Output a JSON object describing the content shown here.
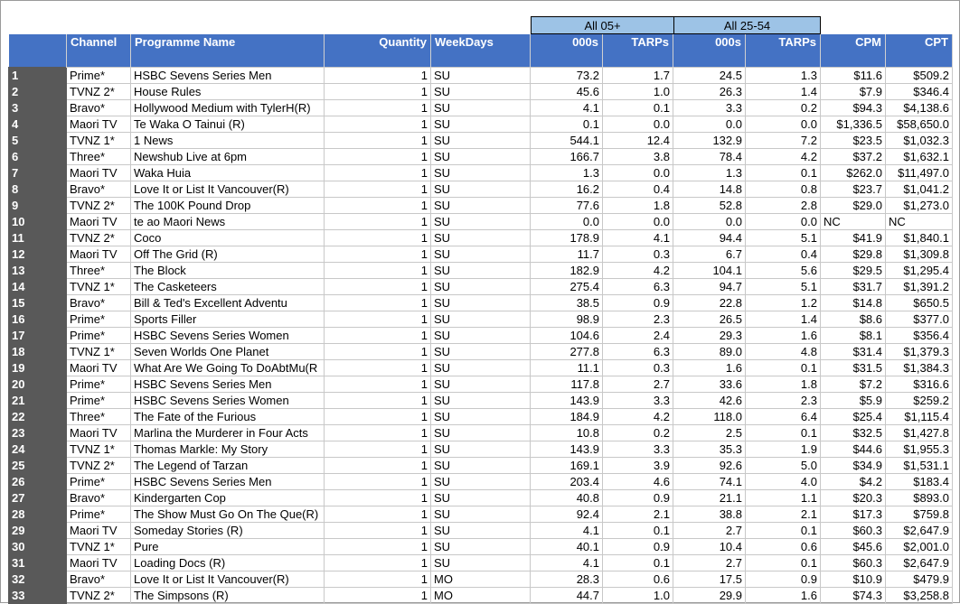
{
  "group_headers": [
    "All 05+",
    "All 25-54"
  ],
  "columns": [
    "",
    "Channel",
    "Programme Name",
    "Quantity",
    "WeekDays",
    "000s",
    "TARPs",
    "000s",
    "TARPs",
    "CPM",
    "CPT"
  ],
  "rows": [
    [
      "1",
      "Prime*",
      "HSBC Sevens Series Men",
      "1",
      "SU",
      "73.2",
      "1.7",
      "24.5",
      "1.3",
      "$11.6",
      "$509.2"
    ],
    [
      "2",
      "TVNZ 2*",
      "House Rules",
      "1",
      "SU",
      "45.6",
      "1.0",
      "26.3",
      "1.4",
      "$7.9",
      "$346.4"
    ],
    [
      "3",
      "Bravo*",
      "Hollywood Medium with TylerH(R)",
      "1",
      "SU",
      "4.1",
      "0.1",
      "3.3",
      "0.2",
      "$94.3",
      "$4,138.6"
    ],
    [
      "4",
      "Maori TV",
      "Te Waka O Tainui (R)",
      "1",
      "SU",
      "0.1",
      "0.0",
      "0.0",
      "0.0",
      "$1,336.5",
      "$58,650.0"
    ],
    [
      "5",
      "TVNZ 1*",
      "1 News",
      "1",
      "SU",
      "544.1",
      "12.4",
      "132.9",
      "7.2",
      "$23.5",
      "$1,032.3"
    ],
    [
      "6",
      "Three*",
      "Newshub Live at 6pm",
      "1",
      "SU",
      "166.7",
      "3.8",
      "78.4",
      "4.2",
      "$37.2",
      "$1,632.1"
    ],
    [
      "7",
      "Maori TV",
      "Waka Huia",
      "1",
      "SU",
      "1.3",
      "0.0",
      "1.3",
      "0.1",
      "$262.0",
      "$11,497.0"
    ],
    [
      "8",
      "Bravo*",
      "Love It or List It Vancouver(R)",
      "1",
      "SU",
      "16.2",
      "0.4",
      "14.8",
      "0.8",
      "$23.7",
      "$1,041.2"
    ],
    [
      "9",
      "TVNZ 2*",
      "The 100K Pound Drop",
      "1",
      "SU",
      "77.6",
      "1.8",
      "52.8",
      "2.8",
      "$29.0",
      "$1,273.0"
    ],
    [
      "10",
      "Maori TV",
      "te ao Maori News",
      "1",
      "SU",
      "0.0",
      "0.0",
      "0.0",
      "0.0",
      "NC",
      "NC"
    ],
    [
      "11",
      "TVNZ 2*",
      "Coco",
      "1",
      "SU",
      "178.9",
      "4.1",
      "94.4",
      "5.1",
      "$41.9",
      "$1,840.1"
    ],
    [
      "12",
      "Maori TV",
      "Off The Grid (R)",
      "1",
      "SU",
      "11.7",
      "0.3",
      "6.7",
      "0.4",
      "$29.8",
      "$1,309.8"
    ],
    [
      "13",
      "Three*",
      "The Block",
      "1",
      "SU",
      "182.9",
      "4.2",
      "104.1",
      "5.6",
      "$29.5",
      "$1,295.4"
    ],
    [
      "14",
      "TVNZ 1*",
      "The Casketeers",
      "1",
      "SU",
      "275.4",
      "6.3",
      "94.7",
      "5.1",
      "$31.7",
      "$1,391.2"
    ],
    [
      "15",
      "Bravo*",
      "Bill & Ted's Excellent Adventu",
      "1",
      "SU",
      "38.5",
      "0.9",
      "22.8",
      "1.2",
      "$14.8",
      "$650.5"
    ],
    [
      "16",
      "Prime*",
      "Sports Filler",
      "1",
      "SU",
      "98.9",
      "2.3",
      "26.5",
      "1.4",
      "$8.6",
      "$377.0"
    ],
    [
      "17",
      "Prime*",
      "HSBC Sevens Series Women",
      "1",
      "SU",
      "104.6",
      "2.4",
      "29.3",
      "1.6",
      "$8.1",
      "$356.4"
    ],
    [
      "18",
      "TVNZ 1*",
      "Seven Worlds One Planet",
      "1",
      "SU",
      "277.8",
      "6.3",
      "89.0",
      "4.8",
      "$31.4",
      "$1,379.3"
    ],
    [
      "19",
      "Maori TV",
      "What Are We Going To DoAbtMu(R",
      "1",
      "SU",
      "11.1",
      "0.3",
      "1.6",
      "0.1",
      "$31.5",
      "$1,384.3"
    ],
    [
      "20",
      "Prime*",
      "HSBC Sevens Series Men",
      "1",
      "SU",
      "117.8",
      "2.7",
      "33.6",
      "1.8",
      "$7.2",
      "$316.6"
    ],
    [
      "21",
      "Prime*",
      "HSBC Sevens Series Women",
      "1",
      "SU",
      "143.9",
      "3.3",
      "42.6",
      "2.3",
      "$5.9",
      "$259.2"
    ],
    [
      "22",
      "Three*",
      "The Fate of the Furious",
      "1",
      "SU",
      "184.9",
      "4.2",
      "118.0",
      "6.4",
      "$25.4",
      "$1,115.4"
    ],
    [
      "23",
      "Maori TV",
      "Marlina the Murderer in Four Acts",
      "1",
      "SU",
      "10.8",
      "0.2",
      "2.5",
      "0.1",
      "$32.5",
      "$1,427.8"
    ],
    [
      "24",
      "TVNZ 1*",
      "Thomas Markle: My Story",
      "1",
      "SU",
      "143.9",
      "3.3",
      "35.3",
      "1.9",
      "$44.6",
      "$1,955.3"
    ],
    [
      "25",
      "TVNZ 2*",
      "The Legend of Tarzan",
      "1",
      "SU",
      "169.1",
      "3.9",
      "92.6",
      "5.0",
      "$34.9",
      "$1,531.1"
    ],
    [
      "26",
      "Prime*",
      "HSBC Sevens Series Men",
      "1",
      "SU",
      "203.4",
      "4.6",
      "74.1",
      "4.0",
      "$4.2",
      "$183.4"
    ],
    [
      "27",
      "Bravo*",
      "Kindergarten Cop",
      "1",
      "SU",
      "40.8",
      "0.9",
      "21.1",
      "1.1",
      "$20.3",
      "$893.0"
    ],
    [
      "28",
      "Prime*",
      "The Show Must Go On The Que(R)",
      "1",
      "SU",
      "92.4",
      "2.1",
      "38.8",
      "2.1",
      "$17.3",
      "$759.8"
    ],
    [
      "29",
      "Maori TV",
      "Someday Stories (R)",
      "1",
      "SU",
      "4.1",
      "0.1",
      "2.7",
      "0.1",
      "$60.3",
      "$2,647.9"
    ],
    [
      "30",
      "TVNZ 1*",
      "Pure",
      "1",
      "SU",
      "40.1",
      "0.9",
      "10.4",
      "0.6",
      "$45.6",
      "$2,001.0"
    ],
    [
      "31",
      "Maori TV",
      "Loading Docs (R)",
      "1",
      "SU",
      "4.1",
      "0.1",
      "2.7",
      "0.1",
      "$60.3",
      "$2,647.9"
    ],
    [
      "32",
      "Bravo*",
      "Love It or List It Vancouver(R)",
      "1",
      "MO",
      "28.3",
      "0.6",
      "17.5",
      "0.9",
      "$10.9",
      "$479.9"
    ],
    [
      "33",
      "TVNZ 2*",
      "The Simpsons (R)",
      "1",
      "MO",
      "44.7",
      "1.0",
      "29.9",
      "1.6",
      "$74.3",
      "$3,258.8"
    ]
  ]
}
